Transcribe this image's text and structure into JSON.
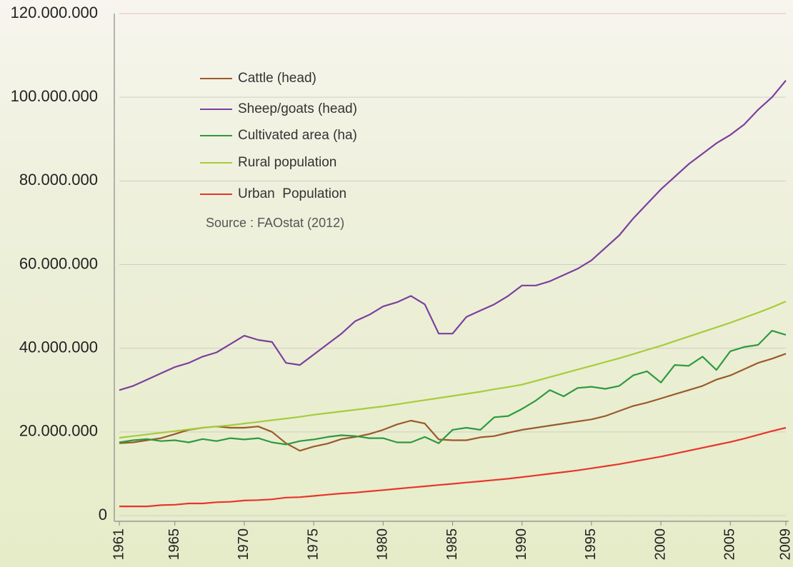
{
  "chart_data": {
    "type": "line",
    "x": [
      1961,
      1962,
      1963,
      1964,
      1965,
      1966,
      1967,
      1968,
      1969,
      1970,
      1971,
      1972,
      1973,
      1974,
      1975,
      1976,
      1977,
      1978,
      1979,
      1980,
      1981,
      1982,
      1983,
      1984,
      1985,
      1986,
      1987,
      1988,
      1989,
      1990,
      1991,
      1992,
      1993,
      1994,
      1995,
      1996,
      1997,
      1998,
      1999,
      2000,
      2001,
      2002,
      2003,
      2004,
      2005,
      2006,
      2007,
      2008,
      2009
    ],
    "xlim": [
      1961,
      2009
    ],
    "xticks": [
      1961,
      1965,
      1970,
      1975,
      1980,
      1985,
      1990,
      1995,
      2000,
      2005,
      2009
    ],
    "ylim": [
      0,
      120000000
    ],
    "yticks": [
      0,
      {
        "value": 20000000,
        "label": "20.000.000"
      },
      {
        "value": 40000000,
        "label": "40.000.000"
      },
      {
        "value": 60000000,
        "label": "60.000.000"
      },
      {
        "value": 80000000,
        "label": "80.000.000"
      },
      {
        "value": 100000000,
        "label": "100.000.000"
      },
      {
        "value": 120000000,
        "label": "120.000.000"
      }
    ],
    "grid": true,
    "legend": "upper left",
    "annotation": "Source : FAOstat (2012)",
    "series": [
      {
        "name": "Cattle (head)",
        "color": "#9b5a2a",
        "values": [
          17300000,
          17500000,
          18000000,
          18500000,
          19500000,
          20500000,
          21000000,
          21300000,
          21000000,
          21000000,
          21300000,
          20000000,
          17300000,
          15500000,
          16500000,
          17200000,
          18300000,
          18800000,
          19500000,
          20500000,
          21800000,
          22700000,
          22000000,
          18200000,
          18000000,
          18000000,
          18700000,
          19000000,
          19800000,
          20500000,
          21000000,
          21500000,
          22000000,
          22500000,
          23000000,
          23800000,
          25000000,
          26200000,
          27000000,
          28000000,
          29000000,
          30000000,
          31000000,
          32500000,
          33500000,
          35000000,
          36500000,
          37500000,
          38700000
        ]
      },
      {
        "name": "Sheep/goats (head)",
        "color": "#7b3f9e",
        "values": [
          30000000,
          31000000,
          32500000,
          34000000,
          35500000,
          36500000,
          38000000,
          39000000,
          41000000,
          43000000,
          42000000,
          41500000,
          36500000,
          36000000,
          38500000,
          41000000,
          43500000,
          46500000,
          48000000,
          50000000,
          51000000,
          52500000,
          50500000,
          43500000,
          43500000,
          47500000,
          49000000,
          50500000,
          52500000,
          55000000,
          55000000,
          56000000,
          57500000,
          59000000,
          61000000,
          64000000,
          67000000,
          71000000,
          74500000,
          78000000,
          81000000,
          84000000,
          86500000,
          89000000,
          91000000,
          93500000,
          97000000,
          100000000,
          104000000
        ]
      },
      {
        "name": "Cultivated area (ha)",
        "color": "#2e9a3e",
        "values": [
          17500000,
          18000000,
          18300000,
          17800000,
          18000000,
          17500000,
          18300000,
          17800000,
          18500000,
          18200000,
          18500000,
          17500000,
          17000000,
          17800000,
          18200000,
          18800000,
          19200000,
          19000000,
          18500000,
          18500000,
          17500000,
          17500000,
          18800000,
          17300000,
          20500000,
          21000000,
          20500000,
          23500000,
          23800000,
          25500000,
          27500000,
          30000000,
          28500000,
          30500000,
          30800000,
          30300000,
          31000000,
          33500000,
          34500000,
          31800000,
          36000000,
          35800000,
          38000000,
          34800000,
          39300000,
          40300000,
          40800000,
          44200000,
          43200000
        ]
      },
      {
        "name": "Rural population",
        "color": "#a6cc3a",
        "values": [
          18600000,
          19000000,
          19400000,
          19800000,
          20200000,
          20600000,
          21000000,
          21300000,
          21600000,
          22000000,
          22400000,
          22800000,
          23200000,
          23600000,
          24100000,
          24500000,
          24900000,
          25300000,
          25700000,
          26100000,
          26600000,
          27100000,
          27600000,
          28100000,
          28600000,
          29100000,
          29600000,
          30200000,
          30700000,
          31300000,
          32200000,
          33100000,
          34000000,
          34900000,
          35800000,
          36700000,
          37600000,
          38600000,
          39600000,
          40600000,
          41700000,
          42800000,
          43900000,
          45000000,
          46100000,
          47300000,
          48500000,
          49800000,
          51200000
        ]
      },
      {
        "name": "Urban  Population",
        "color": "#e8352a",
        "values": [
          2200000,
          2200000,
          2200000,
          2500000,
          2600000,
          2900000,
          2900000,
          3200000,
          3300000,
          3600000,
          3700000,
          3900000,
          4300000,
          4400000,
          4700000,
          5000000,
          5300000,
          5500000,
          5800000,
          6100000,
          6400000,
          6700000,
          7000000,
          7300000,
          7600000,
          7900000,
          8200000,
          8500000,
          8800000,
          9200000,
          9600000,
          10000000,
          10400000,
          10800000,
          11300000,
          11800000,
          12300000,
          12900000,
          13500000,
          14100000,
          14800000,
          15500000,
          16200000,
          16900000,
          17600000,
          18400000,
          19300000,
          20200000,
          21000000
        ]
      }
    ]
  }
}
